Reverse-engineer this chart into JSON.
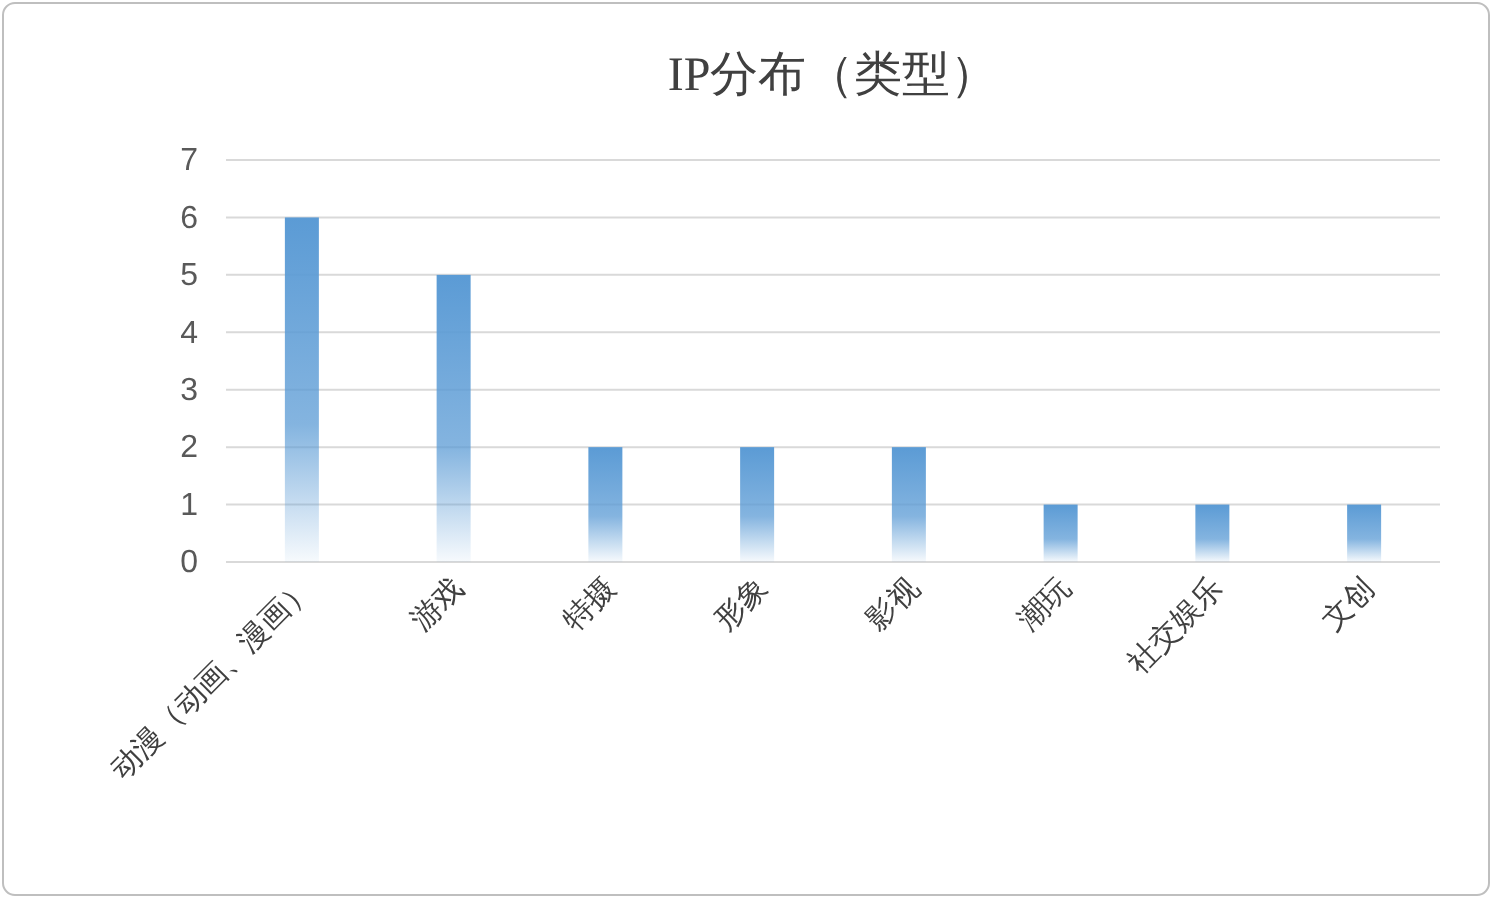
{
  "chart_data": {
    "type": "bar",
    "title": "IP分布（类型）",
    "categories": [
      "动漫（动画、漫画）",
      "游戏",
      "特摄",
      "形象",
      "影视",
      "潮玩",
      "社交娱乐",
      "文创"
    ],
    "values": [
      6,
      5,
      2,
      2,
      2,
      1,
      1,
      1
    ],
    "color": "#5b9bd5",
    "ylim": [
      0,
      7
    ],
    "yticks": [
      0,
      1,
      2,
      3,
      4,
      5,
      6,
      7
    ],
    "grid": "y"
  }
}
